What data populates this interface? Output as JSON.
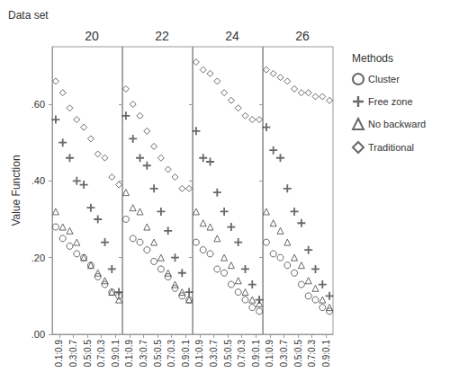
{
  "chart_data": [
    {
      "type": "scatter",
      "title": "20",
      "annotations": [
        "Data set"
      ],
      "y_label": "Value Function",
      "legend_title": "Methods",
      "legend": "right",
      "grid": false,
      "categories": [
        "0.1:0.9",
        null,
        "0.3:0.7",
        null,
        "0.5:0.5",
        null,
        "0.7:0.3",
        null,
        "0.9:0.1",
        null
      ],
      "ylim": [
        0.0,
        0.75
      ],
      "yticks": [
        {
          "value": 0.0,
          "label": ".00"
        },
        {
          "value": 0.2,
          "label": ".20"
        },
        {
          "value": 0.4,
          "label": ".40"
        },
        {
          "value": 0.6,
          "label": ".60"
        }
      ],
      "series": [
        {
          "name": "Cluster",
          "color": "#444444",
          "marker": "circle",
          "values": [
            0.28,
            0.25,
            0.23,
            0.21,
            0.2,
            0.18,
            0.15,
            0.13,
            0.11,
            0.1
          ]
        },
        {
          "name": "Free zone",
          "color": "#444444",
          "marker": "plus",
          "values": [
            0.56,
            0.5,
            0.46,
            0.4,
            0.39,
            0.33,
            0.3,
            0.24,
            0.17,
            0.11
          ]
        },
        {
          "name": "No backward",
          "color": "#444444",
          "marker": "triangle",
          "values": [
            0.32,
            0.28,
            0.27,
            0.24,
            0.2,
            0.18,
            0.16,
            0.14,
            0.11,
            0.09
          ]
        },
        {
          "name": "Traditional",
          "color": "#444444",
          "marker": "diamond",
          "values": [
            0.66,
            0.63,
            0.59,
            0.56,
            0.54,
            0.51,
            0.47,
            0.46,
            0.41,
            0.39
          ]
        }
      ]
    },
    {
      "type": "scatter",
      "title": "22",
      "grid": false,
      "tick_labels": "x",
      "categories": [
        "0.1:0.9",
        null,
        "0.3:0.7",
        null,
        "0.5:0.5",
        null,
        "0.7:0.3",
        null,
        "0.9:0.1",
        null
      ],
      "ylim": [
        0.0,
        0.75
      ],
      "yticks": [
        {
          "value": 0.0,
          "label": ".00"
        },
        {
          "value": 0.2,
          "label": ".20"
        },
        {
          "value": 0.4,
          "label": ".40"
        },
        {
          "value": 0.6,
          "label": ".60"
        }
      ],
      "series": [
        {
          "name": "Cluster",
          "color": "#444444",
          "marker": "circle",
          "values": [
            0.3,
            0.25,
            0.24,
            0.22,
            0.19,
            0.17,
            0.15,
            0.12,
            0.1,
            0.09
          ]
        },
        {
          "name": "Free zone",
          "color": "#444444",
          "marker": "plus",
          "values": [
            0.57,
            0.51,
            0.46,
            0.44,
            0.38,
            0.32,
            0.27,
            0.2,
            0.16,
            0.11
          ]
        },
        {
          "name": "No backward",
          "color": "#444444",
          "marker": "triangle",
          "values": [
            0.37,
            0.33,
            0.32,
            0.28,
            0.24,
            0.2,
            0.16,
            0.13,
            0.11,
            0.09
          ]
        },
        {
          "name": "Traditional",
          "color": "#444444",
          "marker": "diamond",
          "values": [
            0.64,
            0.6,
            0.57,
            0.53,
            0.49,
            0.46,
            0.43,
            0.41,
            0.38,
            0.38
          ]
        }
      ]
    },
    {
      "type": "scatter",
      "title": "24",
      "grid": false,
      "tick_labels": "x",
      "categories": [
        "0.1:0.9",
        null,
        "0.3:0.7",
        null,
        "0.5:0.5",
        null,
        "0.7:0.3",
        null,
        "0.9:0.1",
        null
      ],
      "ylim": [
        0.0,
        0.75
      ],
      "yticks": [
        {
          "value": 0.0,
          "label": ".00"
        },
        {
          "value": 0.2,
          "label": ".20"
        },
        {
          "value": 0.4,
          "label": ".40"
        },
        {
          "value": 0.6,
          "label": ".60"
        }
      ],
      "series": [
        {
          "name": "Cluster",
          "color": "#444444",
          "marker": "circle",
          "values": [
            0.24,
            0.22,
            0.21,
            0.17,
            0.16,
            0.13,
            0.11,
            0.09,
            0.07,
            0.06
          ]
        },
        {
          "name": "Free zone",
          "color": "#444444",
          "marker": "plus",
          "values": [
            0.53,
            0.46,
            0.45,
            0.37,
            0.32,
            0.28,
            0.24,
            0.17,
            0.13,
            0.09
          ]
        },
        {
          "name": "No backward",
          "color": "#444444",
          "marker": "triangle",
          "values": [
            0.32,
            0.29,
            0.28,
            0.25,
            0.2,
            0.18,
            0.14,
            0.11,
            0.09,
            0.08
          ]
        },
        {
          "name": "Traditional",
          "color": "#444444",
          "marker": "diamond",
          "values": [
            0.71,
            0.69,
            0.68,
            0.66,
            0.63,
            0.61,
            0.59,
            0.57,
            0.56,
            0.56
          ]
        }
      ]
    },
    {
      "type": "scatter",
      "title": "26",
      "grid": false,
      "tick_labels": "x",
      "categories": [
        "0.1:0.9",
        null,
        "0.3:0.7",
        null,
        "0.5:0.5",
        null,
        "0.7:0.3",
        null,
        "0.9:0.1",
        null
      ],
      "ylim": [
        0.0,
        0.75
      ],
      "yticks": [
        {
          "value": 0.0,
          "label": ".00"
        },
        {
          "value": 0.2,
          "label": ".20"
        },
        {
          "value": 0.4,
          "label": ".40"
        },
        {
          "value": 0.6,
          "label": ".60"
        }
      ],
      "series": [
        {
          "name": "Cluster",
          "color": "#444444",
          "marker": "circle",
          "values": [
            0.24,
            0.21,
            0.2,
            0.18,
            0.16,
            0.13,
            0.1,
            0.09,
            0.07,
            0.06
          ]
        },
        {
          "name": "Free zone",
          "color": "#444444",
          "marker": "plus",
          "values": [
            0.54,
            0.48,
            0.46,
            0.38,
            0.32,
            0.29,
            0.22,
            0.17,
            0.13,
            0.1
          ]
        },
        {
          "name": "No backward",
          "color": "#444444",
          "marker": "triangle",
          "values": [
            0.32,
            0.29,
            0.27,
            0.24,
            0.2,
            0.18,
            0.14,
            0.12,
            0.09,
            0.07
          ]
        },
        {
          "name": "Traditional",
          "color": "#444444",
          "marker": "diamond",
          "values": [
            0.69,
            0.68,
            0.67,
            0.66,
            0.64,
            0.63,
            0.63,
            0.62,
            0.62,
            0.61
          ]
        }
      ]
    }
  ]
}
